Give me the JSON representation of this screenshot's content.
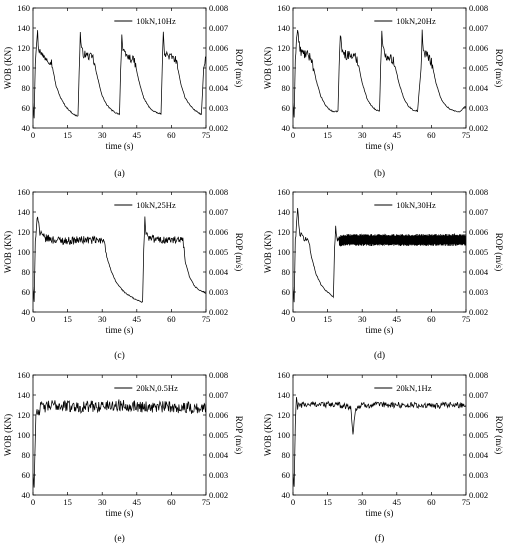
{
  "chart_data": [
    {
      "type": "line",
      "panel_label": "(a)",
      "legend": "10kN,10Hz",
      "xlabel": "time (s)",
      "ylabel": "WOB (KN)",
      "y2label": "ROP (m/s)",
      "xlim": [
        0,
        75
      ],
      "ylim": [
        40,
        160
      ],
      "y2lim": [
        0.002,
        0.008
      ],
      "xticks": [
        "0",
        "15",
        "30",
        "45",
        "60",
        "75"
      ],
      "yticks": [
        "40",
        "60",
        "80",
        "100",
        "120",
        "140",
        "160"
      ],
      "y2ticks": [
        "0.002",
        "0.003",
        "0.004",
        "0.005",
        "0.006",
        "0.007",
        "0.008"
      ],
      "grid": false,
      "legend_position": "top-center",
      "series": [
        {
          "x": [
            0,
            0.5,
            1,
            1.5,
            2,
            2.5,
            3,
            4,
            6,
            8,
            10,
            12,
            14,
            16,
            18,
            19.5,
            20,
            20.5,
            21,
            22,
            24,
            26,
            28,
            30,
            32,
            34,
            36,
            37.5,
            38,
            38.5,
            39,
            40,
            42,
            44,
            46,
            48,
            50,
            52,
            54,
            55.5,
            56,
            56.5,
            57,
            58,
            60,
            62,
            64,
            66,
            68,
            70,
            72,
            73,
            74,
            75
          ],
          "y": [
            65,
            50,
            108,
            125,
            135,
            115,
            120,
            112,
            110,
            106,
            82,
            70,
            62,
            57,
            53,
            52,
            95,
            135,
            118,
            114,
            112,
            110,
            90,
            72,
            63,
            58,
            55,
            54,
            98,
            133,
            116,
            113,
            110,
            107,
            86,
            70,
            62,
            57,
            55,
            54,
            98,
            134,
            117,
            113,
            111,
            108,
            85,
            70,
            63,
            58,
            55,
            53,
            100,
            110
          ]
        }
      ]
    },
    {
      "type": "line",
      "panel_label": "(b)",
      "legend": "10kN,20Hz",
      "xlabel": "time (s)",
      "ylabel": "WOB (KN)",
      "y2label": "ROP (m/s)",
      "xlim": [
        0,
        75
      ],
      "ylim": [
        40,
        160
      ],
      "y2lim": [
        0.002,
        0.008
      ],
      "xticks": [
        "0",
        "15",
        "30",
        "45",
        "60",
        "75"
      ],
      "yticks": [
        "40",
        "60",
        "80",
        "100",
        "120",
        "140",
        "160"
      ],
      "y2ticks": [
        "0.002",
        "0.003",
        "0.004",
        "0.005",
        "0.006",
        "0.007",
        "0.008"
      ],
      "grid": false,
      "legend_position": "top-center",
      "series": [
        {
          "x": [
            0,
            0.5,
            1,
            1.5,
            2,
            3,
            4,
            6,
            8,
            10,
            12,
            14,
            16,
            18,
            19.5,
            20,
            20.5,
            21,
            22,
            24,
            26,
            28,
            30,
            32,
            34,
            36,
            37.5,
            38,
            38.5,
            39,
            40,
            42,
            44,
            46,
            48,
            50,
            52,
            54,
            55.5,
            56,
            56.5,
            57,
            58,
            60,
            62,
            64,
            66,
            68,
            70,
            72,
            73,
            74,
            75
          ],
          "y": [
            65,
            50,
            110,
            128,
            138,
            118,
            115,
            113,
            110,
            88,
            72,
            63,
            58,
            56,
            57,
            100,
            136,
            120,
            114,
            113,
            112,
            108,
            85,
            70,
            62,
            58,
            57,
            100,
            134,
            118,
            113,
            112,
            105,
            84,
            70,
            62,
            58,
            57,
            99,
            137,
            118,
            114,
            113,
            107,
            85,
            70,
            63,
            59,
            57,
            56,
            58,
            60,
            62
          ]
        }
      ]
    },
    {
      "type": "line",
      "panel_label": "(c)",
      "legend": "10kN,25Hz",
      "xlabel": "time (s)",
      "ylabel": "WOB (KN)",
      "y2label": "ROP (m/s)",
      "xlim": [
        0,
        75
      ],
      "ylim": [
        40,
        160
      ],
      "y2lim": [
        0.002,
        0.008
      ],
      "xticks": [
        "0",
        "15",
        "30",
        "45",
        "60",
        "75"
      ],
      "yticks": [
        "40",
        "60",
        "80",
        "100",
        "120",
        "140",
        "160"
      ],
      "y2ticks": [
        "0.002",
        "0.003",
        "0.004",
        "0.005",
        "0.006",
        "0.007",
        "0.008"
      ],
      "grid": false,
      "legend_position": "top-center",
      "series": [
        {
          "x": [
            0,
            0.5,
            1,
            1.5,
            2,
            3,
            5,
            10,
            15,
            20,
            25,
            30,
            31,
            32,
            34,
            36,
            38,
            40,
            42,
            44,
            46,
            47.5,
            48,
            48.5,
            49,
            50,
            55,
            60,
            64,
            65,
            66,
            68,
            70,
            72,
            74,
            75
          ],
          "y": [
            65,
            50,
            110,
            128,
            138,
            118,
            114,
            112,
            111,
            112,
            112,
            111,
            112,
            95,
            80,
            70,
            64,
            59,
            56,
            53,
            51,
            50,
            100,
            136,
            118,
            114,
            112,
            112,
            111,
            112,
            90,
            74,
            66,
            62,
            60,
            59
          ]
        }
      ]
    },
    {
      "type": "line",
      "panel_label": "(d)",
      "legend": "10kN,30Hz",
      "xlabel": "time (s)",
      "ylabel": "WOB (KN)",
      "y2label": "ROP (m/s)",
      "xlim": [
        0,
        75
      ],
      "ylim": [
        40,
        160
      ],
      "y2lim": [
        0.002,
        0.008
      ],
      "xticks": [
        "0",
        "15",
        "30",
        "45",
        "60",
        "75"
      ],
      "yticks": [
        "40",
        "60",
        "80",
        "100",
        "120",
        "140",
        "160"
      ],
      "y2ticks": [
        "0.002",
        "0.003",
        "0.004",
        "0.005",
        "0.006",
        "0.007",
        "0.008"
      ],
      "grid": false,
      "legend_position": "top-center",
      "series": [
        {
          "x": [
            0,
            0.5,
            1,
            1.5,
            2,
            3,
            4,
            6,
            7,
            8,
            10,
            12,
            14,
            16,
            17.5,
            18,
            18.5,
            19,
            20,
            22,
            30,
            40,
            50,
            60,
            70,
            75
          ],
          "y": [
            65,
            50,
            110,
            128,
            142,
            118,
            115,
            112,
            110,
            95,
            78,
            68,
            62,
            58,
            55,
            100,
            127,
            112,
            111,
            112,
            112,
            112,
            112,
            112,
            112,
            112
          ]
        }
      ]
    },
    {
      "type": "line",
      "panel_label": "(e)",
      "legend": "20kN,0.5Hz",
      "xlabel": "time (s)",
      "ylabel": "WOB (KN)",
      "y2label": "ROP (m/s)",
      "xlim": [
        0,
        75
      ],
      "ylim": [
        40,
        160
      ],
      "y2lim": [
        0.002,
        0.008
      ],
      "xticks": [
        "0",
        "15",
        "30",
        "45",
        "60",
        "75"
      ],
      "yticks": [
        "40",
        "60",
        "80",
        "100",
        "120",
        "140",
        "160"
      ],
      "y2ticks": [
        "0.002",
        "0.003",
        "0.004",
        "0.005",
        "0.006",
        "0.007",
        "0.008"
      ],
      "grid": false,
      "legend_position": "top-center",
      "series": [
        {
          "x": [
            0,
            0.5,
            1,
            1.5,
            2,
            3,
            10,
            20,
            30,
            40,
            50,
            60,
            70,
            75
          ],
          "y": [
            62,
            48,
            100,
            128,
            122,
            127,
            130,
            128,
            129,
            130,
            128,
            128,
            127,
            126
          ]
        }
      ]
    },
    {
      "type": "line",
      "panel_label": "(f)",
      "legend": "20kN,1Hz",
      "xlabel": "time (s)",
      "ylabel": "WOB (KN)",
      "y2label": "ROP (m/s)",
      "xlim": [
        0,
        75
      ],
      "ylim": [
        40,
        160
      ],
      "y2lim": [
        0.002,
        0.008
      ],
      "xticks": [
        "0",
        "15",
        "30",
        "45",
        "60",
        "75"
      ],
      "yticks": [
        "40",
        "60",
        "80",
        "100",
        "120",
        "140",
        "160"
      ],
      "y2ticks": [
        "0.002",
        "0.003",
        "0.004",
        "0.005",
        "0.006",
        "0.007",
        "0.008"
      ],
      "grid": false,
      "legend_position": "top-center",
      "series": [
        {
          "x": [
            0,
            0.5,
            1,
            1.5,
            2,
            3,
            10,
            20,
            25,
            26,
            27,
            30,
            40,
            50,
            60,
            70,
            75
          ],
          "y": [
            62,
            48,
            110,
            138,
            128,
            130,
            131,
            130,
            128,
            100,
            126,
            130,
            130,
            130,
            129,
            130,
            130
          ]
        }
      ]
    }
  ]
}
